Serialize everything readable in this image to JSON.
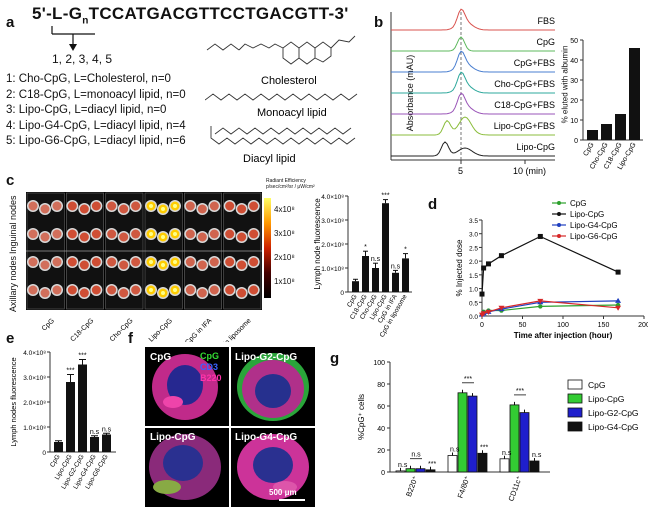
{
  "panel_a": {
    "label": "a",
    "sequence_prefix": "5'-L-G",
    "sequence_sub": "n",
    "sequence_rest": "TCCATGACGTTCCTGACGTT-3'",
    "numbers": "1, 2, 3, 4, 5",
    "entries": [
      "1: Cho-CpG, L=Cholesterol, n=0",
      "2: C18-CpG, L=monoacyl lipid, n=0",
      "3: Lipo-CpG, L=diacyl lipid, n=0",
      "4: Lipo-G4-CpG, L=diacyl lipid, n=4",
      "5: Lipo-G6-CpG, L=diacyl lipid, n=6"
    ],
    "structures": [
      "Cholesterol",
      "Monoacyl lipid",
      "Diacyl lipid"
    ]
  },
  "panel_b": {
    "label": "b",
    "ylabel": "Absorbance (mAU)",
    "xticks": [
      "5",
      "10 (min)"
    ],
    "traces": [
      {
        "name": "FBS",
        "color": "#d9534f"
      },
      {
        "name": "CpG",
        "color": "#5cb85c"
      },
      {
        "name": "CpG+FBS",
        "color": "#4a7fd0"
      },
      {
        "name": "Cho-CpG+FBS",
        "color": "#2ea89c"
      },
      {
        "name": "C18-CpG+FBS",
        "color": "#9a55b8"
      },
      {
        "name": "Lipo-CpG+FBS",
        "color": "#8bbd3c"
      },
      {
        "name": "Lipo-CpG",
        "color": "#222222"
      }
    ]
  },
  "chart_data": [
    {
      "type": "bar",
      "title": "",
      "ylabel": "% eluted with albumin",
      "categories": [
        "CpG",
        "Cho-CpG",
        "C18-CpG",
        "Lipo-CpG"
      ],
      "values": [
        5,
        8,
        13,
        46
      ],
      "ylim": [
        0,
        50
      ],
      "yticks": [
        "0",
        "10",
        "20",
        "30",
        "40",
        "50"
      ]
    },
    {
      "type": "bar",
      "ylabel": "Lymph node fluorescence",
      "categories": [
        "CpG",
        "C18-CpG",
        "Cho-CpG",
        "Lipo-CpG",
        "CpG in IFA",
        "CpG in liposome"
      ],
      "values": [
        0.45,
        1.5,
        1.0,
        3.7,
        0.8,
        1.4
      ],
      "errors": [
        0.08,
        0.2,
        0.2,
        0.15,
        0.1,
        0.2
      ],
      "ylim": [
        0,
        4
      ],
      "yticks": [
        "0",
        "1.0×10⁸",
        "2.0×10⁸",
        "3.0×10⁸",
        "4.0×10⁸"
      ],
      "annotations": [
        "",
        "*",
        "n.s",
        "***",
        "n.s",
        "*"
      ]
    },
    {
      "type": "line",
      "ylabel": "% Injected dose",
      "xlabel": "Time after injection (hour)",
      "x": [
        0,
        2,
        8,
        24,
        72,
        168
      ],
      "xticks": [
        "0",
        "50",
        "100",
        "150",
        "200"
      ],
      "yticks": [
        "0.0",
        "0.5",
        "1.0",
        "1.5",
        "2.0",
        "2.5",
        "3.0",
        "3.5"
      ],
      "xlim": [
        0,
        200
      ],
      "ylim": [
        0,
        3.5
      ],
      "series": [
        {
          "name": "CpG",
          "color": "#2ca02c",
          "values": [
            0.05,
            0.15,
            0.2,
            0.2,
            0.35,
            0.4
          ]
        },
        {
          "name": "Lipo-CpG",
          "color": "#111111",
          "values": [
            0.8,
            1.75,
            1.9,
            2.2,
            2.9,
            1.6
          ]
        },
        {
          "name": "Lipo-G4-CpG",
          "color": "#1f3fbf",
          "values": [
            0.05,
            0.1,
            0.15,
            0.25,
            0.5,
            0.55
          ]
        },
        {
          "name": "Lipo-G6-CpG",
          "color": "#d62728",
          "values": [
            0.05,
            0.1,
            0.15,
            0.3,
            0.55,
            0.3
          ]
        }
      ]
    },
    {
      "type": "bar",
      "ylabel": "Lymph nodes fluorescence",
      "categories": [
        "CpG",
        "Lipo-CpG",
        "Lipo-G2-CpG",
        "Lipo-G4-CpG",
        "Lipo-G6-CpG"
      ],
      "values": [
        0.4,
        2.8,
        3.5,
        0.6,
        0.7
      ],
      "errors": [
        0.05,
        0.3,
        0.2,
        0.05,
        0.05
      ],
      "ylim": [
        0,
        4
      ],
      "yticks": [
        "0",
        "1.0×10⁸",
        "2.0×10⁸",
        "3.0×10⁸",
        "4.0×10⁸"
      ],
      "annotations": [
        "",
        "***",
        "***",
        "n.s",
        "n.s"
      ]
    },
    {
      "type": "bar",
      "ylabel": "%CpG⁺ cells",
      "categories": [
        "B220⁺",
        "F4/80⁺",
        "CD11c⁺"
      ],
      "series": [
        {
          "name": "CpG",
          "color": "#ffffff",
          "values": [
            1,
            15,
            12
          ]
        },
        {
          "name": "Lipo-CpG",
          "color": "#33cc33",
          "values": [
            3,
            72,
            61
          ]
        },
        {
          "name": "Lipo-G2-CpG",
          "color": "#1f1fcc",
          "values": [
            3,
            69,
            54
          ]
        },
        {
          "name": "Lipo-G4-CpG",
          "color": "#111111",
          "values": [
            2,
            17,
            10
          ]
        }
      ],
      "ylim": [
        0,
        100
      ],
      "yticks": [
        "0",
        "20",
        "40",
        "60",
        "80",
        "100"
      ]
    }
  ],
  "panel_c": {
    "label": "c",
    "row_labels": [
      "Inguinal nodes",
      "Axillary nodes"
    ],
    "column_labels": [
      "CpG",
      "C18-CpG",
      "Cho-CpG",
      "Lipo-CpG",
      "CpG in IFA",
      "CpG in liposome"
    ],
    "colorbar_title": "Radiant Efficiency p/sec/cm²/sr / μW/cm²",
    "colorbar_ticks": [
      "4x10⁸",
      "3x10⁸",
      "2x10⁸",
      "1x10⁸"
    ]
  },
  "panel_d": {
    "label": "d"
  },
  "panel_e": {
    "label": "e"
  },
  "panel_f": {
    "label": "f",
    "legend": [
      "CpG",
      "CD3",
      "B220"
    ],
    "legend_colors": [
      "#33dd33",
      "#3a63ff",
      "#ff33aa"
    ],
    "tiles": [
      "CpG",
      "Lipo-G2-CpG",
      "Lipo-CpG",
      "Lipo-G4-CpG"
    ],
    "scalebar": "500 μm"
  },
  "panel_g": {
    "label": "g",
    "sig": [
      "n.s",
      "n.s",
      "***",
      "***",
      "n.s",
      "***",
      "***",
      "n.s",
      "n.s",
      "***",
      "**"
    ]
  }
}
